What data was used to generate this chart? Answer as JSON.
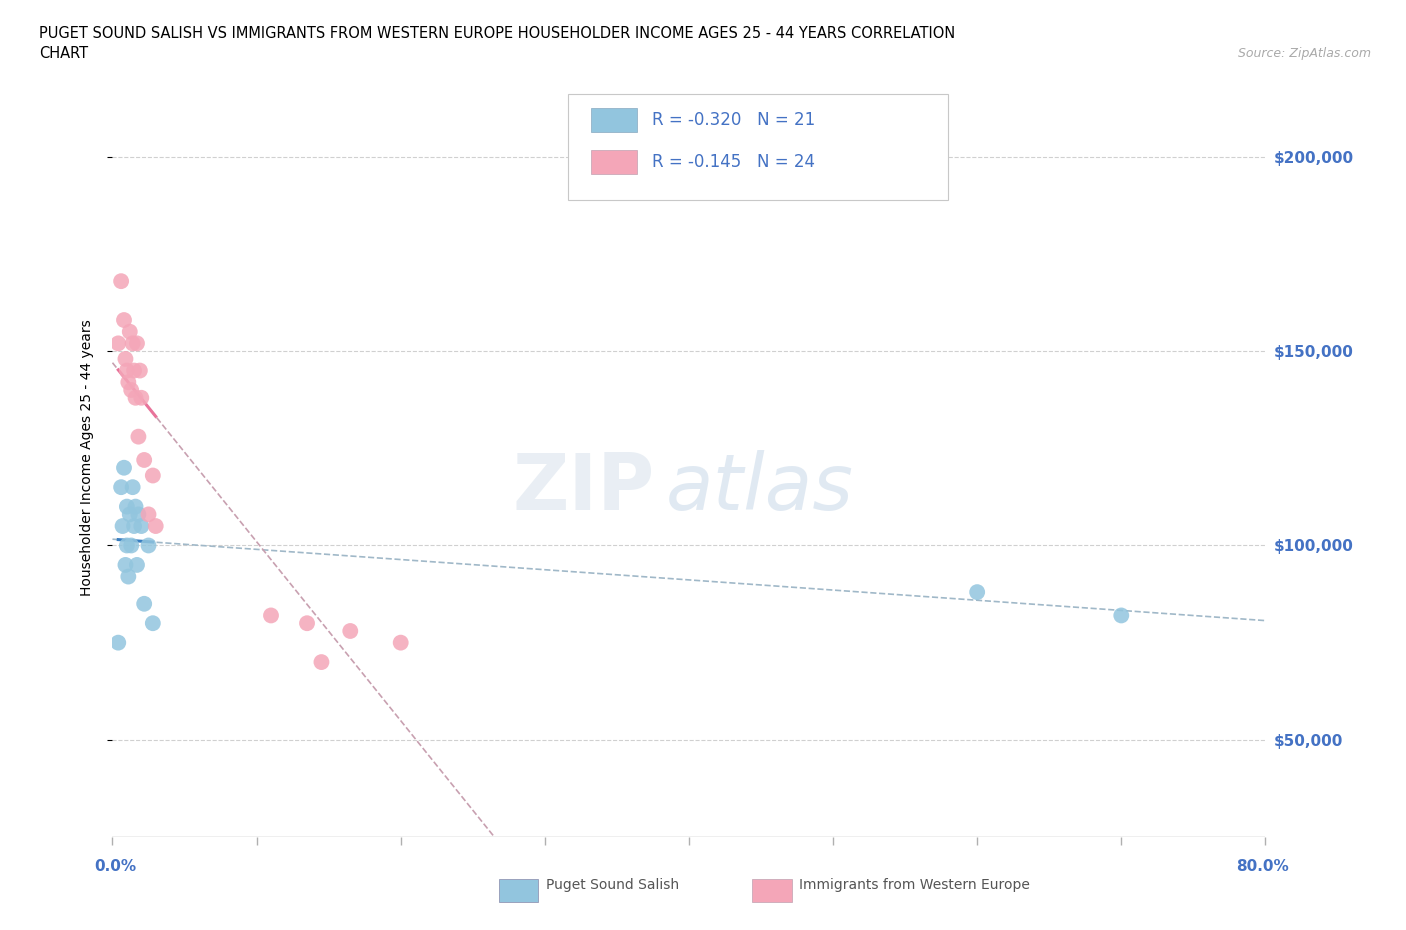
{
  "title_line1": "PUGET SOUND SALISH VS IMMIGRANTS FROM WESTERN EUROPE HOUSEHOLDER INCOME AGES 25 - 44 YEARS CORRELATION",
  "title_line2": "CHART",
  "source": "Source: ZipAtlas.com",
  "ylabel": "Householder Income Ages 25 - 44 years",
  "y_tick_labels": [
    "$50,000",
    "$100,000",
    "$150,000",
    "$200,000"
  ],
  "y_tick_values": [
    50000,
    100000,
    150000,
    200000
  ],
  "xlim": [
    0.0,
    0.8
  ],
  "ylim": [
    25000,
    220000
  ],
  "salish_color": "#92c5de",
  "immigrants_color": "#f4a6b8",
  "salish_line_color": "#3a7fc1",
  "immigrants_line_color": "#e8739a",
  "dashed_color": "#c8a0b0",
  "dashed_salish_color": "#a0b8c8",
  "R_salish": -0.32,
  "N_salish": 21,
  "R_immigrants": -0.145,
  "N_immigrants": 24,
  "legend_text_color": "#4472c4",
  "salish_x": [
    0.004,
    0.006,
    0.007,
    0.008,
    0.009,
    0.01,
    0.01,
    0.011,
    0.012,
    0.013,
    0.014,
    0.015,
    0.016,
    0.017,
    0.018,
    0.02,
    0.022,
    0.025,
    0.028,
    0.6,
    0.7
  ],
  "salish_y": [
    75000,
    115000,
    105000,
    120000,
    95000,
    110000,
    100000,
    92000,
    108000,
    100000,
    115000,
    105000,
    110000,
    95000,
    108000,
    105000,
    85000,
    100000,
    80000,
    88000,
    82000
  ],
  "immigrants_x": [
    0.004,
    0.006,
    0.008,
    0.009,
    0.01,
    0.011,
    0.012,
    0.013,
    0.014,
    0.015,
    0.016,
    0.017,
    0.018,
    0.019,
    0.02,
    0.022,
    0.025,
    0.028,
    0.03,
    0.11,
    0.135,
    0.145,
    0.165,
    0.2
  ],
  "immigrants_y": [
    152000,
    168000,
    158000,
    148000,
    145000,
    142000,
    155000,
    140000,
    152000,
    145000,
    138000,
    152000,
    128000,
    145000,
    138000,
    122000,
    108000,
    118000,
    105000,
    82000,
    80000,
    70000,
    78000,
    75000
  ]
}
